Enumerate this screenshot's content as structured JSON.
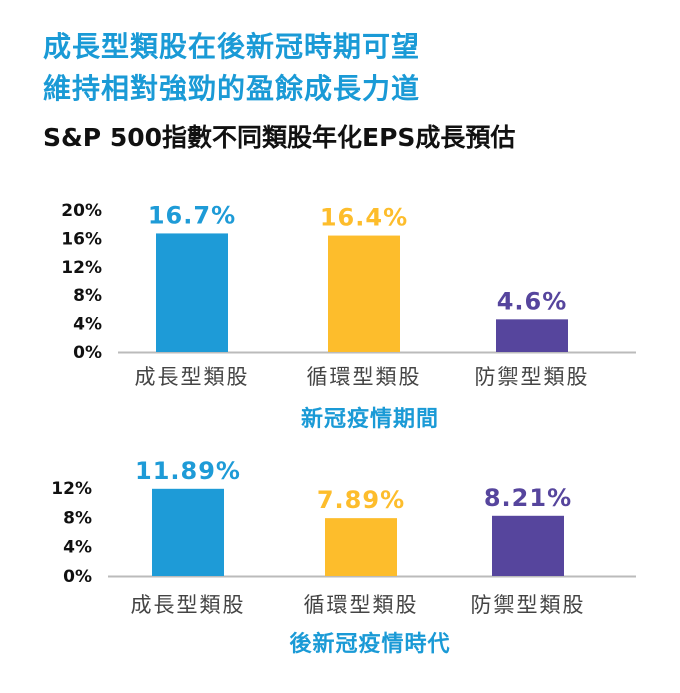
{
  "headline": {
    "line1": "成長型類股在後新冠時期可望",
    "line2": "維持相對強勁的盈餘成長力道"
  },
  "subtitle": "S&P 500指數不同類股年化EPS成長預估",
  "colors": {
    "headline": "#1a9ad6",
    "growth": "#1e9bd7",
    "cyclical": "#fdbd2c",
    "defensive": "#56459d",
    "axis": "#bbbbbb"
  },
  "chart_data": [
    {
      "type": "bar",
      "title": "新冠疫情期間",
      "categories": [
        "成長型類股",
        "循環型類股",
        "防禦型類股"
      ],
      "values": [
        16.7,
        16.4,
        4.6
      ],
      "value_labels": [
        "16.7%",
        "16.4%",
        "4.6%"
      ],
      "bar_colors": [
        "#1e9bd7",
        "#fdbd2c",
        "#56459d"
      ],
      "yticks": [
        0,
        4,
        8,
        12,
        16,
        20
      ],
      "ytick_labels": [
        "0%",
        "4%",
        "8%",
        "12%",
        "16%",
        "20%"
      ],
      "ylim": [
        0,
        20
      ],
      "grid": false,
      "legend": "none"
    },
    {
      "type": "bar",
      "title": "後新冠疫情時代",
      "categories": [
        "成長型類股",
        "循環型類股",
        "防禦型類股"
      ],
      "values": [
        11.89,
        7.89,
        8.21
      ],
      "value_labels": [
        "11.89%",
        "7.89%",
        "8.21%"
      ],
      "bar_colors": [
        "#1e9bd7",
        "#fdbd2c",
        "#56459d"
      ],
      "yticks": [
        0,
        4,
        8,
        12
      ],
      "ytick_labels": [
        "0%",
        "4%",
        "8%",
        "12%"
      ],
      "ylim": [
        0,
        12
      ],
      "grid": false,
      "legend": "none"
    }
  ]
}
